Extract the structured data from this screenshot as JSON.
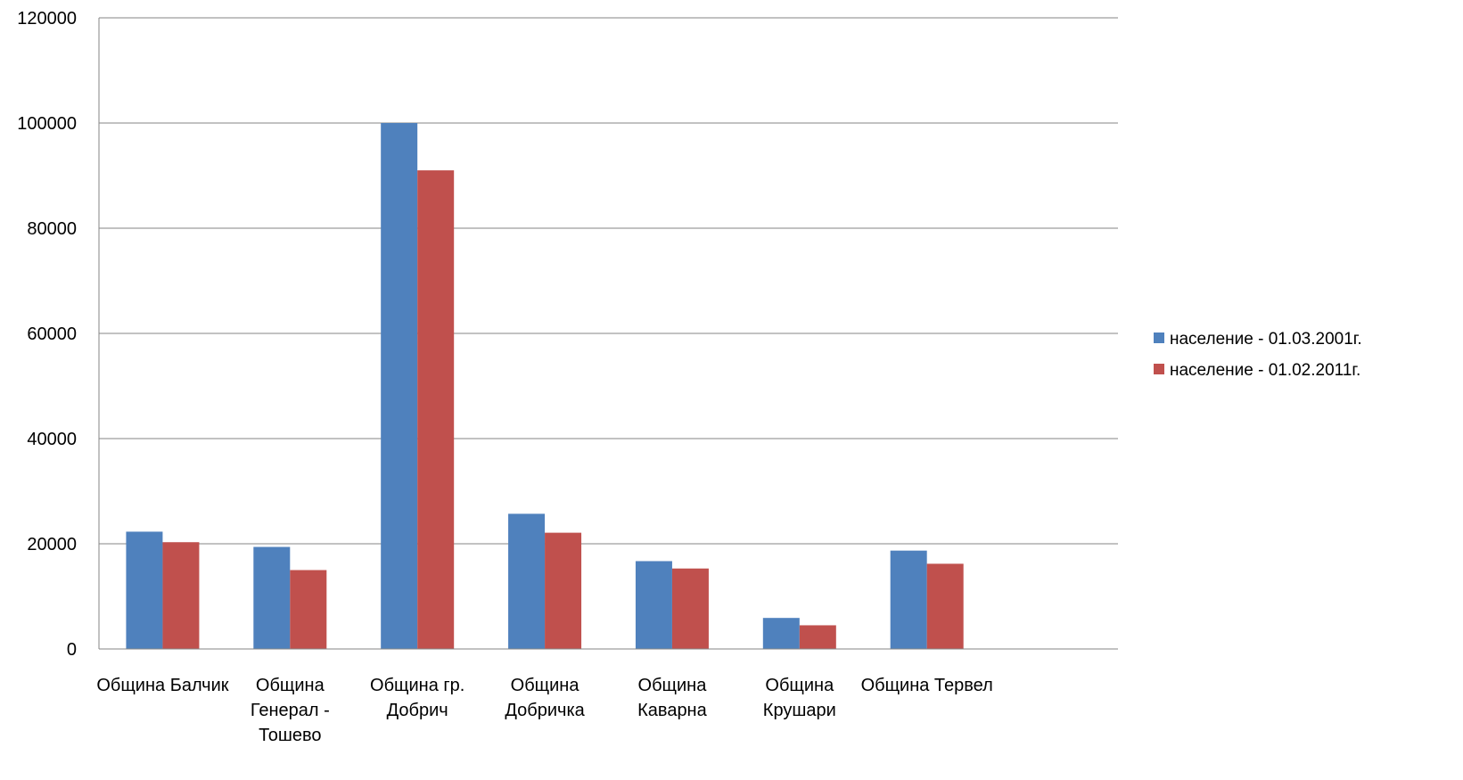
{
  "chart_data": {
    "type": "bar",
    "title": "",
    "xlabel": "",
    "ylabel": "",
    "ylim": [
      0,
      120000
    ],
    "yticks": [
      0,
      20000,
      40000,
      60000,
      80000,
      100000,
      120000
    ],
    "ytick_labels": [
      "0",
      "20000",
      "40000",
      "60000",
      "80000",
      "100000",
      "120000"
    ],
    "grid": true,
    "legend_position": "right",
    "categories": [
      [
        "Община Балчик"
      ],
      [
        "Община",
        "Генерал -",
        "Тошево"
      ],
      [
        "Община гр.",
        "Добрич"
      ],
      [
        "Община",
        "Добричка"
      ],
      [
        "Община",
        "Каварна"
      ],
      [
        "Община",
        "Крушари"
      ],
      [
        "Община Тервел"
      ]
    ],
    "empty_slots": 1,
    "series": [
      {
        "name": "население - 01.03.2001г.",
        "color": "#4F81BD",
        "values": [
          22300,
          19400,
          100000,
          25700,
          16700,
          5900,
          18700
        ]
      },
      {
        "name": "население - 01.02.2011г.",
        "color": "#C0504D",
        "values": [
          20300,
          15000,
          91000,
          22100,
          15300,
          4500,
          16200
        ]
      }
    ]
  }
}
